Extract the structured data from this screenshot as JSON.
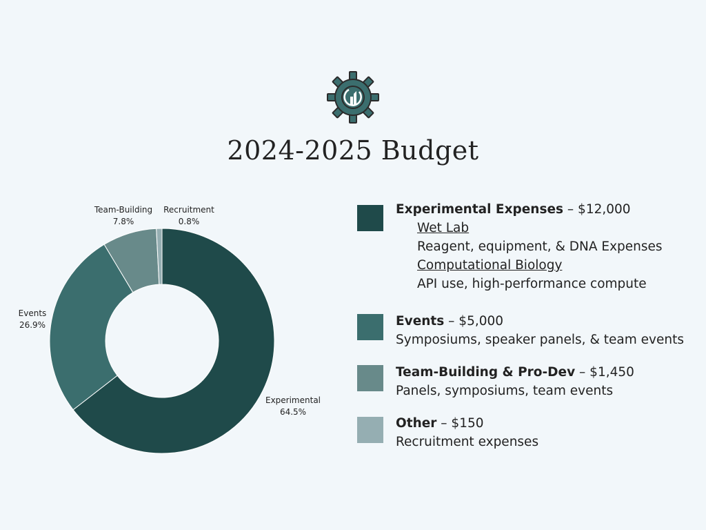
{
  "title": "2024-2025 Budget",
  "logo": {
    "icon": "gear-logo-icon",
    "gear_color": "#3b6e6e",
    "accent_color": "#ffffff"
  },
  "colors": {
    "experimental": "#1f4a4a",
    "events": "#3b6e6e",
    "team_building": "#688a8a",
    "recruitment": "#95aeb2"
  },
  "chart_data": {
    "type": "donut",
    "title": "2024-2025 Budget",
    "slices": [
      {
        "label": "Experimental",
        "percent": "64.5%",
        "value": 12000,
        "color": "#1f4a4a"
      },
      {
        "label": "Events",
        "percent": "26.9%",
        "value": 5000,
        "color": "#3b6e6e"
      },
      {
        "label": "Team-Building",
        "percent": "7.8%",
        "value": 1450,
        "color": "#688a8a"
      },
      {
        "label": "Recruitment",
        "percent": "0.8%",
        "value": 150,
        "color": "#95aeb2"
      }
    ]
  },
  "legend": [
    {
      "heading": "Experimental Expenses",
      "amount": " – $12,000",
      "color": "#1f4a4a",
      "sub": [
        {
          "title": "Wet Lab",
          "desc": "Reagent, equipment, & DNA Expenses"
        },
        {
          "title": "Computational Biology",
          "desc": "API use, high-performance compute"
        }
      ]
    },
    {
      "heading": "Events",
      "amount": " – $5,000",
      "color": "#3b6e6e",
      "desc": "Symposiums, speaker panels, & team events"
    },
    {
      "heading": "Team-Building & Pro-Dev",
      "amount": " – $1,450",
      "color": "#688a8a",
      "desc": "Panels, symposiums, team events"
    },
    {
      "heading": "Other",
      "amount": " – $150",
      "color": "#95aeb2",
      "desc": "Recruitment expenses"
    }
  ]
}
